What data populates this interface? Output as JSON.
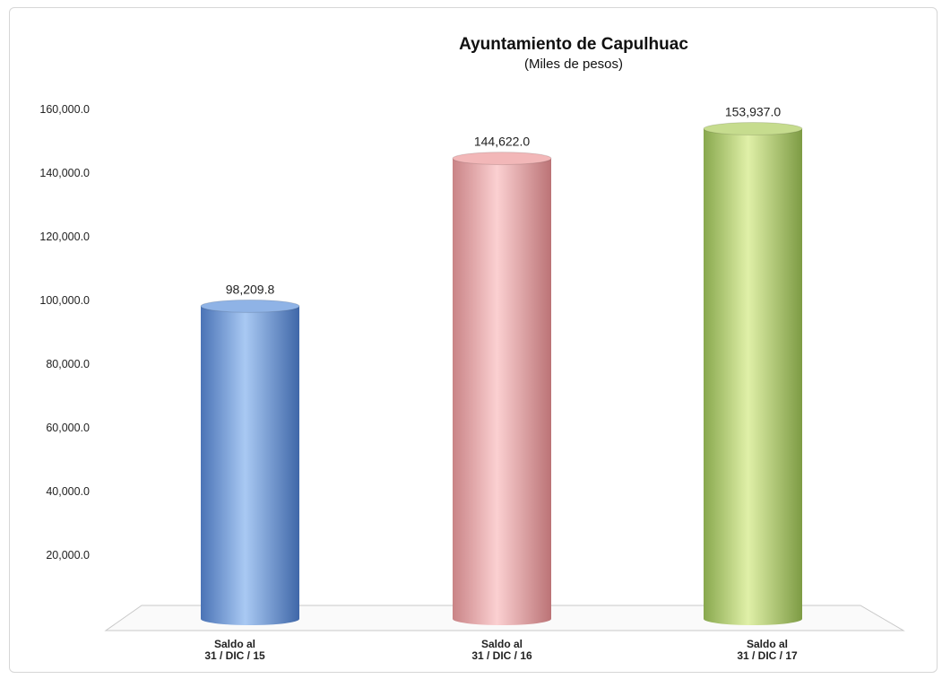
{
  "chart_data": {
    "type": "bar",
    "title": "Ayuntamiento de Capulhuac",
    "subtitle": "(Miles de pesos)",
    "categories": [
      [
        "Saldo al",
        "31 / DIC / 15"
      ],
      [
        "Saldo al",
        "31 / DIC / 16"
      ],
      [
        "Saldo al",
        "31 / DIC / 17"
      ]
    ],
    "values": [
      98209.8,
      144622.0,
      153937.0
    ],
    "value_labels": [
      "98,209.8",
      "144,622.0",
      "153,937.0"
    ],
    "yticks": [
      "20,000.0",
      "40,000.0",
      "60,000.0",
      "80,000.0",
      "100,000.0",
      "120,000.0",
      "140,000.0",
      "160,000.0"
    ],
    "ytick_values": [
      20000,
      40000,
      60000,
      80000,
      100000,
      120000,
      140000,
      160000
    ],
    "ylim": [
      0,
      160000
    ],
    "colors": [
      "#8fb3e6",
      "#f2b7b8",
      "#c6dc8e"
    ],
    "grid": false,
    "legend": "none"
  }
}
